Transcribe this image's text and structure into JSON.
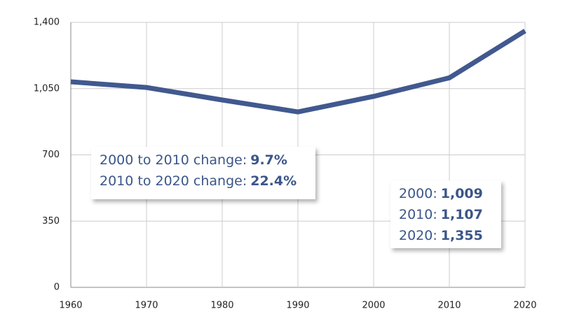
{
  "chart_data": {
    "type": "line",
    "x": [
      1960,
      1970,
      1980,
      1990,
      2000,
      2010,
      2020
    ],
    "series": [
      {
        "color": "#41598f",
        "values": [
          1086,
          1056,
          990,
          927,
          1009,
          1107,
          1355
        ]
      }
    ],
    "xlim": [
      1960,
      2020
    ],
    "xticks": [
      1960,
      1970,
      1980,
      1990,
      2000,
      2010,
      2020
    ],
    "ylim": [
      0,
      1400
    ],
    "yticks": [
      0,
      350,
      700,
      {
        "value": 1050,
        "label": "1,050"
      },
      {
        "value": 1400,
        "label": "1,400"
      }
    ],
    "grid": true,
    "annotations": [
      {
        "lines": [
          {
            "label": "2000 to 2010 change:",
            "value": "9.7%"
          },
          {
            "label": "2010 to 2020 change:",
            "value": "22.4%"
          }
        ]
      },
      {
        "lines": [
          {
            "label": "2000:",
            "value": "1,009"
          },
          {
            "label": "2010:",
            "value": "1,107"
          },
          {
            "label": "2020:",
            "value": "1,355"
          }
        ]
      }
    ]
  }
}
